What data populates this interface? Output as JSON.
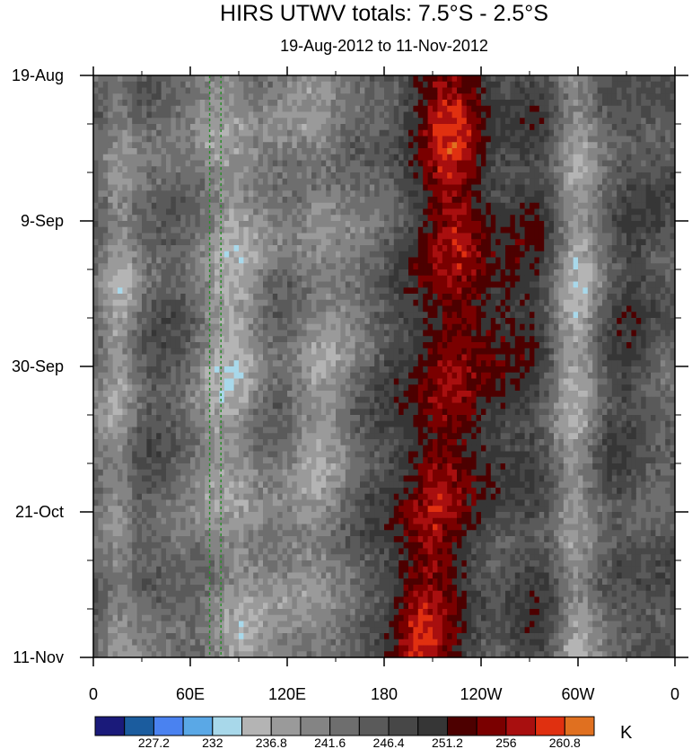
{
  "chart_data": {
    "type": "heatmap",
    "title": "HIRS UTWV totals: 7.5°S - 2.5°S",
    "subtitle": "19-Aug-2012 to 11-Nov-2012",
    "x_ticks": [
      "0",
      "60E",
      "120E",
      "180",
      "120W",
      "60W",
      "0"
    ],
    "x_range_deg_east": [
      0,
      360
    ],
    "y_ticks": [
      "19-Aug",
      "9-Sep",
      "30-Sep",
      "21-Oct",
      "11-Nov"
    ],
    "y_range": [
      "2012-08-19",
      "2012-11-11"
    ],
    "colorbar": {
      "unit": "K",
      "labels": [
        "227.2",
        "232",
        "236.8",
        "241.6",
        "246.4",
        "251.2",
        "256",
        "260.8"
      ],
      "colors": [
        "#1a1a7a",
        "#1b5c9e",
        "#4a82f0",
        "#5aa8e6",
        "#a8d8ea",
        "#b4b4b4",
        "#9a9a9a",
        "#848484",
        "#6e6e6e",
        "#5a5a5a",
        "#474747",
        "#363636",
        "#4d0000",
        "#7a0000",
        "#a80f0f",
        "#e03010",
        "#e07020"
      ]
    },
    "reference_lines_deg_east": [
      72,
      79
    ]
  }
}
